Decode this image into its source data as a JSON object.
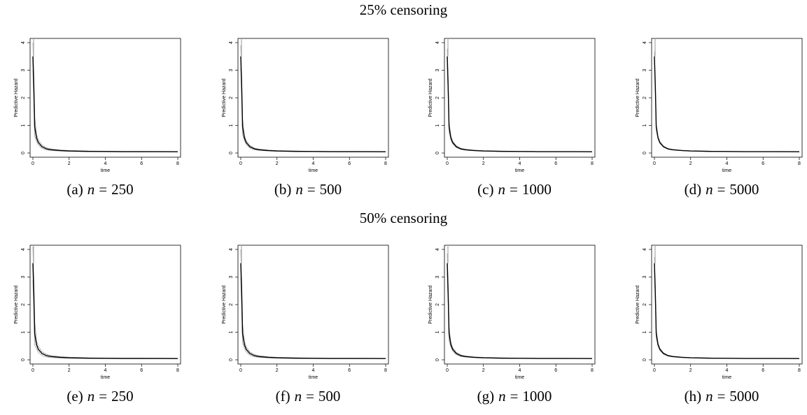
{
  "sections": [
    {
      "title": "25% censoring",
      "panels": [
        {
          "label": "(a)",
          "n_symbol": "n",
          "n_value": "250"
        },
        {
          "label": "(b)",
          "n_symbol": "n",
          "n_value": "500"
        },
        {
          "label": "(c)",
          "n_symbol": "n",
          "n_value": "1000"
        },
        {
          "label": "(d)",
          "n_symbol": "n",
          "n_value": "5000"
        }
      ]
    },
    {
      "title": "50% censoring",
      "panels": [
        {
          "label": "(e)",
          "n_symbol": "n",
          "n_value": "250"
        },
        {
          "label": "(f)",
          "n_symbol": "n",
          "n_value": "500"
        },
        {
          "label": "(g)",
          "n_symbol": "n",
          "n_value": "1000"
        },
        {
          "label": "(h)",
          "n_symbol": "n",
          "n_value": "5000"
        }
      ]
    }
  ],
  "chart_data": {
    "type": "line",
    "xlabel": "time",
    "ylabel": "Predictive Hazard",
    "xlim": [
      0,
      8
    ],
    "ylim": [
      0,
      4
    ],
    "xticks": [
      "0",
      "2",
      "4",
      "6",
      "8"
    ],
    "yticks": [
      "0",
      "1",
      "2",
      "3",
      "4"
    ],
    "grid": false,
    "series_colors": {
      "estimate": "#000000",
      "band": "#a8a8a8"
    },
    "x": [
      0.0,
      0.05,
      0.1,
      0.2,
      0.3,
      0.5,
      0.75,
      1.0,
      1.5,
      2.0,
      3.0,
      4.0,
      5.0,
      6.0,
      7.0,
      8.0
    ],
    "estimate": [
      3.5,
      2.4,
      0.95,
      0.55,
      0.38,
      0.23,
      0.15,
      0.12,
      0.09,
      0.075,
      0.06,
      0.055,
      0.05,
      0.05,
      0.048,
      0.047
    ],
    "band_width": [
      0.5,
      0.45,
      0.35,
      0.12,
      0.09,
      0.06,
      0.04,
      0.03,
      0.02,
      0.015,
      0.01,
      0.008,
      0.006,
      0.006,
      0.005,
      0.005
    ],
    "band_scale_by_panel": [
      1.0,
      0.8,
      0.55,
      0.35,
      1.2,
      1.0,
      0.7,
      0.45
    ],
    "panels": [
      "(a)",
      "(b)",
      "(c)",
      "(d)",
      "(e)",
      "(f)",
      "(g)",
      "(h)"
    ]
  }
}
